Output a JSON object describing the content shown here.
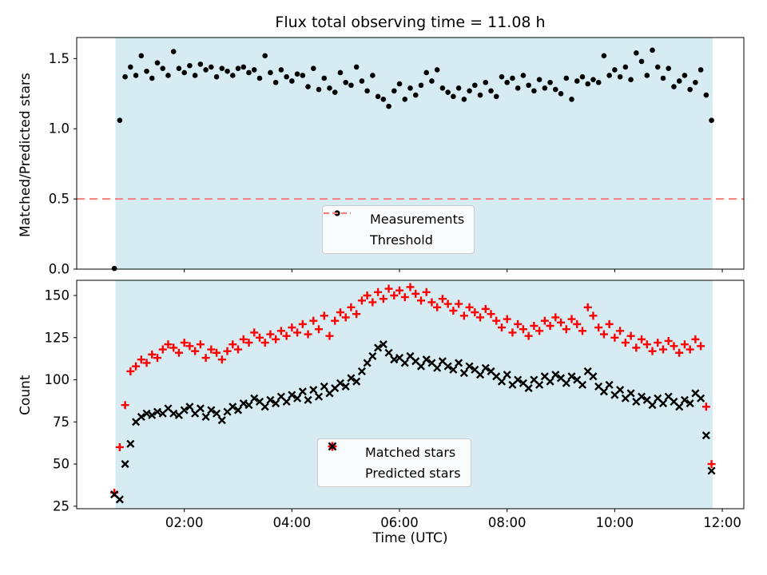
{
  "chart_data": [
    {
      "type": "scatter",
      "title": "Flux total observing time = 11.08 h",
      "ylabel": "Matched/Predicted stars",
      "xlim": [
        0,
        12.4
      ],
      "ylim": [
        0,
        1.65
      ],
      "yticks": [
        0.0,
        0.5,
        1.0,
        1.5
      ],
      "ytick_labels": [
        "0.0",
        "0.5",
        "1.0",
        "1.5"
      ],
      "xticks": [
        2,
        4,
        6,
        8,
        10,
        12
      ],
      "xtick_labels": [
        "02:00",
        "04:00",
        "06:00",
        "08:00",
        "10:00",
        "12:00"
      ],
      "show_xtick_labels": false,
      "grid": false,
      "legend_position": "lower center",
      "x_hours": {
        "start": 0.7,
        "step": 0.1,
        "count": 112
      },
      "span": {
        "x0": 0.72,
        "x1": 11.82,
        "color": "#d6ecf2"
      },
      "threshold": {
        "label": "Threshold",
        "value": 0.5,
        "color": "#f57f7f",
        "style": "dashed"
      },
      "series": [
        {
          "name": "Measurements",
          "marker": "dot",
          "color": "#000000",
          "y": [
            0.005,
            1.06,
            1.37,
            1.44,
            1.38,
            1.52,
            1.41,
            1.36,
            1.47,
            1.43,
            1.38,
            1.55,
            1.43,
            1.4,
            1.45,
            1.38,
            1.46,
            1.42,
            1.44,
            1.37,
            1.43,
            1.41,
            1.38,
            1.43,
            1.44,
            1.4,
            1.42,
            1.36,
            1.52,
            1.4,
            1.33,
            1.42,
            1.37,
            1.34,
            1.39,
            1.38,
            1.3,
            1.43,
            1.28,
            1.36,
            1.29,
            1.26,
            1.4,
            1.33,
            1.31,
            1.44,
            1.34,
            1.27,
            1.38,
            1.23,
            1.21,
            1.16,
            1.27,
            1.32,
            1.21,
            1.29,
            1.24,
            1.31,
            1.4,
            1.34,
            1.42,
            1.29,
            1.26,
            1.23,
            1.29,
            1.21,
            1.27,
            1.31,
            1.24,
            1.33,
            1.27,
            1.23,
            1.37,
            1.33,
            1.36,
            1.29,
            1.38,
            1.31,
            1.27,
            1.35,
            1.29,
            1.33,
            1.28,
            1.25,
            1.36,
            1.21,
            1.34,
            1.37,
            1.32,
            1.35,
            1.33,
            1.52,
            1.38,
            1.42,
            1.37,
            1.44,
            1.35,
            1.54,
            1.48,
            1.38,
            1.56,
            1.44,
            1.36,
            1.43,
            1.3,
            1.34,
            1.38,
            1.28,
            1.33,
            1.42,
            1.24,
            1.06
          ]
        }
      ]
    },
    {
      "type": "scatter",
      "ylabel": "Count",
      "xlabel": "Time (UTC)",
      "xlim": [
        0,
        12.4
      ],
      "ylim": [
        23.5,
        159
      ],
      "yticks": [
        25,
        50,
        75,
        100,
        125,
        150
      ],
      "ytick_labels": [
        "25",
        "50",
        "75",
        "100",
        "125",
        "150"
      ],
      "xticks": [
        2,
        4,
        6,
        8,
        10,
        12
      ],
      "xtick_labels": [
        "02:00",
        "04:00",
        "06:00",
        "08:00",
        "10:00",
        "12:00"
      ],
      "show_xtick_labels": true,
      "grid": false,
      "legend_position": "lower center",
      "x_hours": {
        "start": 0.7,
        "step": 0.1,
        "count": 112
      },
      "span": {
        "x0": 0.72,
        "x1": 11.82,
        "color": "#d6ecf2"
      },
      "series": [
        {
          "name": "Matched stars",
          "marker": "plus",
          "color": "#ff0000",
          "y": [
            33,
            60,
            85,
            105,
            108,
            112,
            110,
            115,
            113,
            118,
            121,
            119,
            116,
            122,
            120,
            117,
            121,
            113,
            118,
            116,
            112,
            117,
            121,
            118,
            124,
            122,
            128,
            125,
            122,
            127,
            124,
            129,
            126,
            131,
            128,
            133,
            127,
            135,
            130,
            138,
            126,
            135,
            140,
            137,
            143,
            139,
            147,
            150,
            146,
            152,
            148,
            154,
            150,
            153,
            149,
            155,
            151,
            147,
            152,
            146,
            143,
            148,
            145,
            141,
            145,
            138,
            143,
            140,
            137,
            142,
            139,
            135,
            131,
            136,
            128,
            133,
            130,
            126,
            132,
            129,
            135,
            132,
            137,
            134,
            130,
            136,
            133,
            129,
            143,
            138,
            131,
            127,
            133,
            125,
            129,
            122,
            126,
            119,
            124,
            121,
            117,
            122,
            118,
            123,
            120,
            116,
            121,
            118,
            124,
            120,
            84,
            50
          ]
        },
        {
          "name": "Predicted stars",
          "marker": "x",
          "color": "#000000",
          "y": [
            32,
            29,
            50,
            62,
            75,
            78,
            80,
            79,
            81,
            80,
            83,
            80,
            79,
            82,
            84,
            80,
            83,
            78,
            82,
            80,
            76,
            81,
            84,
            82,
            86,
            85,
            89,
            87,
            84,
            88,
            86,
            90,
            87,
            91,
            89,
            93,
            88,
            94,
            90,
            96,
            92,
            95,
            98,
            96,
            101,
            99,
            105,
            110,
            114,
            119,
            121,
            116,
            112,
            113,
            110,
            114,
            111,
            108,
            112,
            110,
            107,
            111,
            108,
            106,
            110,
            104,
            108,
            106,
            103,
            107,
            105,
            102,
            99,
            103,
            97,
            100,
            98,
            95,
            100,
            97,
            102,
            99,
            103,
            101,
            98,
            102,
            100,
            97,
            105,
            102,
            96,
            93,
            97,
            91,
            94,
            89,
            92,
            87,
            90,
            88,
            85,
            89,
            86,
            90,
            87,
            84,
            88,
            86,
            92,
            89,
            67,
            46
          ]
        }
      ]
    }
  ]
}
